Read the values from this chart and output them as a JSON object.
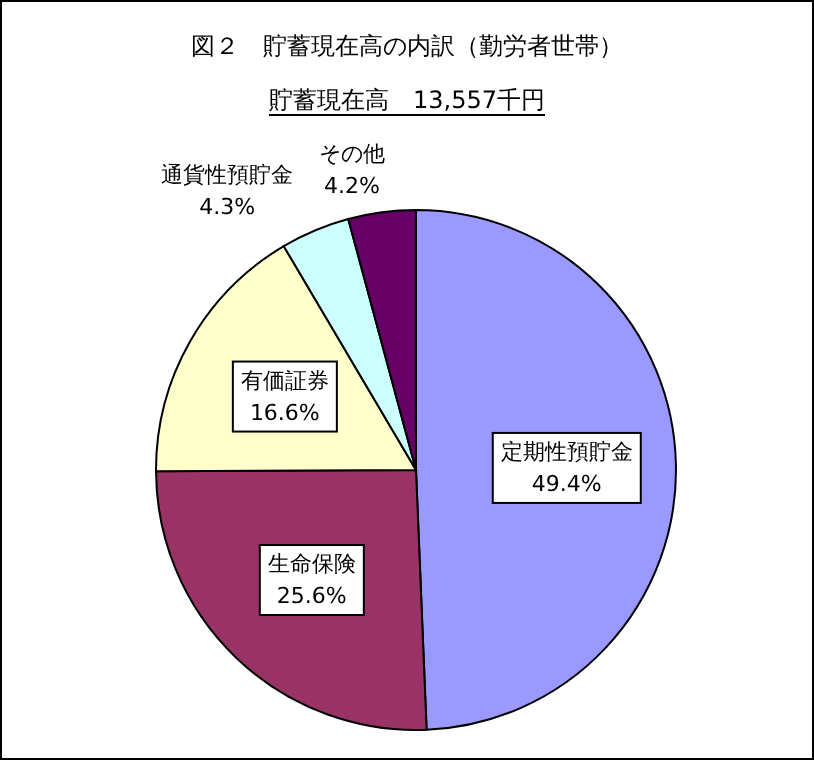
{
  "chart_data": {
    "type": "pie",
    "title": "図２　貯蓄現在高の内訳（勤労者世帯）",
    "subtitle": "貯蓄現在高　13,557千円",
    "categories": [
      "定期性預貯金",
      "生命保険",
      "有価証券",
      "通貨性預貯金",
      "その他"
    ],
    "values": [
      49.4,
      25.6,
      16.6,
      4.3,
      4.2
    ],
    "value_labels": [
      "49.4%",
      "25.6%",
      "16.6%",
      "4.3%",
      "4.2%"
    ],
    "colors": [
      "#9999ff",
      "#993366",
      "#ffffcc",
      "#ccffff",
      "#660066"
    ]
  }
}
